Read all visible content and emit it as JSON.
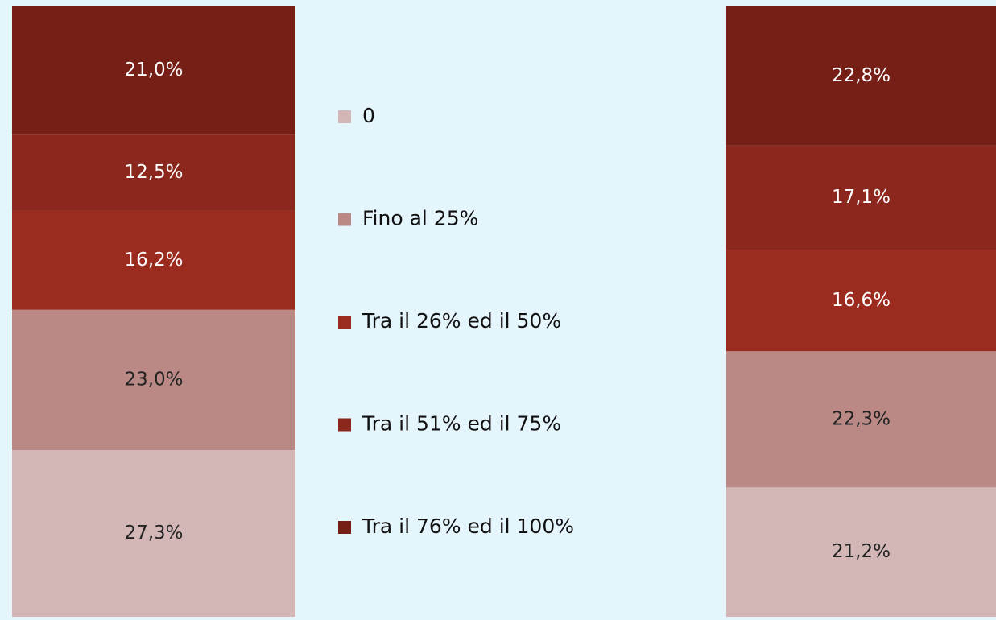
{
  "chart_data": {
    "type": "stacked_bar",
    "categories": [
      null,
      null
    ],
    "ylim": [
      0,
      100
    ],
    "series": [
      {
        "name": "0",
        "color": "#d3b7b7",
        "values": [
          27.3,
          21.2
        ],
        "value_labels": [
          "27,3%",
          "21,2%"
        ]
      },
      {
        "name": "Fino al 25%",
        "color": "#ba8985",
        "values": [
          23.0,
          22.3
        ],
        "value_labels": [
          "23,0%",
          "22,3%"
        ]
      },
      {
        "name": "Tra il 26% ed il 50%",
        "color": "#9c2b1f",
        "values": [
          16.2,
          16.6
        ],
        "value_labels": [
          "16,2%",
          "16,6%"
        ]
      },
      {
        "name": "Tra il 51% ed il 75%",
        "color": "#8b271d",
        "values": [
          12.5,
          17.1
        ],
        "value_labels": [
          "12,5%",
          "17,1%"
        ]
      },
      {
        "name": "Tra il 76% ed il 100%",
        "color": "#761f16",
        "values": [
          21.0,
          22.8
        ],
        "value_labels": [
          "21,0%",
          "22,8%"
        ]
      }
    ]
  }
}
